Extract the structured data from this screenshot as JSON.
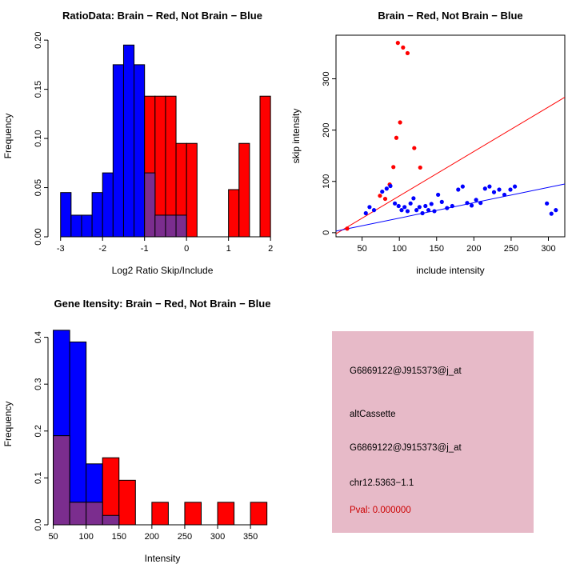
{
  "colors": {
    "red": "#ff0000",
    "blue": "#0000ff",
    "overlap": "#7b2d8e",
    "axis": "#000000"
  },
  "chart_data": [
    {
      "type": "bar",
      "subtype": "overlaid-histogram",
      "title": "RatioData: Brain − Red, Not Brain − Blue",
      "xlabel": "Log2 Ratio Skip/Include",
      "ylabel": "Frequency",
      "xlim": [
        -3.3,
        2.15
      ],
      "ylim": [
        0,
        0.205
      ],
      "xticks": [
        -3,
        -2,
        -1,
        0,
        1,
        2
      ],
      "xtick_labels": [
        "-3",
        "-2",
        "-1",
        "0",
        "1",
        "2"
      ],
      "yticks": [
        0,
        0.05,
        0.1,
        0.15,
        0.2
      ],
      "ytick_labels": [
        "0.00",
        "0.05",
        "0.10",
        "0.15",
        "0.20"
      ],
      "bin_width": 0.25,
      "grid": false,
      "series": [
        {
          "name": "Not Brain",
          "color": "#0000ff",
          "start": -3,
          "values": [
            0.045,
            0.022,
            0.022,
            0.045,
            0.065,
            0.175,
            0.195,
            0.175,
            0.065,
            0.022,
            0.022,
            0.022
          ]
        },
        {
          "name": "Brain",
          "color": "#ff0000",
          "start": -1,
          "values": [
            0.143,
            0.143,
            0.143,
            0.095,
            0.095,
            0,
            0,
            0,
            0.048,
            0.095,
            0,
            0.143
          ]
        }
      ]
    },
    {
      "type": "scatter",
      "title": "Brain − Red, Not Brain − Blue",
      "xlabel": "include intensity",
      "ylabel": "skip intensity",
      "xlim": [
        15,
        322
      ],
      "ylim": [
        -8,
        385
      ],
      "xticks": [
        50,
        100,
        150,
        200,
        250,
        300
      ],
      "xtick_labels": [
        "50",
        "100",
        "150",
        "200",
        "250",
        "300"
      ],
      "yticks": [
        0,
        100,
        200,
        300
      ],
      "ytick_labels": [
        "0",
        "100",
        "200",
        "300"
      ],
      "grid": false,
      "series": [
        {
          "name": "Brain",
          "color": "#ff0000",
          "points": [
            [
              30,
              8
            ],
            [
              74,
              72
            ],
            [
              81,
              66
            ],
            [
              87,
              94
            ],
            [
              92,
              128
            ],
            [
              96,
              185
            ],
            [
              101,
              215
            ],
            [
              98,
              370
            ],
            [
              105,
              361
            ],
            [
              111,
              350
            ],
            [
              120,
              165
            ],
            [
              128,
              127
            ]
          ]
        },
        {
          "name": "Not Brain",
          "color": "#0000ff",
          "points": [
            [
              55,
              38
            ],
            [
              60,
              50
            ],
            [
              66,
              44
            ],
            [
              77,
              80
            ],
            [
              83,
              86
            ],
            [
              88,
              91
            ],
            [
              94,
              57
            ],
            [
              99,
              52
            ],
            [
              103,
              44
            ],
            [
              107,
              50
            ],
            [
              111,
              42
            ],
            [
              115,
              57
            ],
            [
              119,
              67
            ],
            [
              123,
              44
            ],
            [
              127,
              50
            ],
            [
              131,
              38
            ],
            [
              135,
              52
            ],
            [
              139,
              44
            ],
            [
              143,
              56
            ],
            [
              147,
              42
            ],
            [
              152,
              74
            ],
            [
              157,
              60
            ],
            [
              164,
              48
            ],
            [
              171,
              52
            ],
            [
              179,
              84
            ],
            [
              185,
              90
            ],
            [
              191,
              58
            ],
            [
              197,
              53
            ],
            [
              203,
              64
            ],
            [
              209,
              58
            ],
            [
              215,
              86
            ],
            [
              221,
              90
            ],
            [
              227,
              79
            ],
            [
              234,
              84
            ],
            [
              241,
              74
            ],
            [
              249,
              84
            ],
            [
              255,
              90
            ],
            [
              298,
              57
            ],
            [
              304,
              37
            ],
            [
              310,
              44
            ]
          ]
        }
      ],
      "lines": [
        {
          "name": "brain-fit-line",
          "color": "#ff0000",
          "p1": [
            15,
            -2
          ],
          "p2": [
            322,
            264
          ]
        },
        {
          "name": "notbrain-fit-line",
          "color": "#0000ff",
          "p1": [
            15,
            3
          ],
          "p2": [
            322,
            95
          ]
        }
      ]
    },
    {
      "type": "bar",
      "subtype": "overlaid-histogram",
      "title": "Gene Itensity: Brain − Red, Not Brain − Blue",
      "xlabel": "Intensity",
      "ylabel": "Frequency",
      "xlim": [
        42,
        390
      ],
      "ylim": [
        0,
        0.43
      ],
      "xticks": [
        50,
        100,
        150,
        200,
        250,
        300,
        350
      ],
      "xtick_labels": [
        "50",
        "100",
        "150",
        "200",
        "250",
        "300",
        "350"
      ],
      "yticks": [
        0,
        0.1,
        0.2,
        0.3,
        0.4
      ],
      "ytick_labels": [
        "0.0",
        "0.1",
        "0.2",
        "0.3",
        "0.4"
      ],
      "bin_width": 25,
      "grid": false,
      "series": [
        {
          "name": "Not Brain",
          "color": "#0000ff",
          "start": 50,
          "values": [
            0.415,
            0.39,
            0.13,
            0.02,
            0,
            0,
            0,
            0,
            0,
            0,
            0,
            0,
            0
          ]
        },
        {
          "name": "Brain",
          "color": "#ff0000",
          "start": 50,
          "values": [
            0.19,
            0.048,
            0.048,
            0.143,
            0.095,
            0,
            0.048,
            0,
            0.048,
            0,
            0.048,
            0,
            0.048
          ]
        }
      ]
    }
  ],
  "info_panel": {
    "bg": "#e7bac8",
    "lines": [
      {
        "text": "G6869122@J915373@j_at",
        "color": "#000000"
      },
      {
        "text": "altCassette",
        "color": "#000000"
      },
      {
        "text": "G6869122@J915373@j_at",
        "color": "#000000"
      },
      {
        "text": "chr12.5363−1.1",
        "color": "#000000"
      },
      {
        "text": "Pval: 0.000000",
        "color": "#cc0000"
      }
    ]
  }
}
